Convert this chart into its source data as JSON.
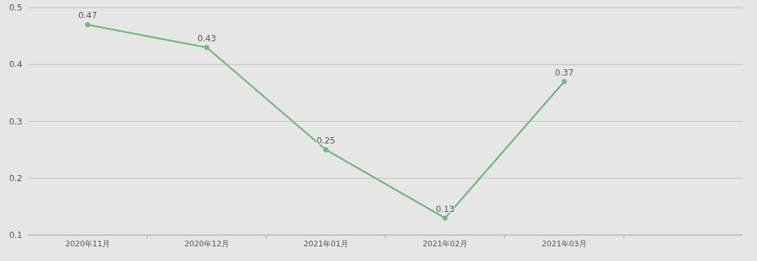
{
  "chart_data": {
    "type": "line",
    "categories": [
      "2020年11月",
      "2020年12月",
      "2021年01月",
      "2021年02月",
      "2021年03月"
    ],
    "series": [
      {
        "color": "#6dbb78",
        "values": [
          0.47,
          0.43,
          0.25,
          0.13,
          0.37
        ]
      }
    ],
    "ylim": [
      0.1,
      0.5
    ],
    "yticks": [
      0.1,
      0.2,
      0.3,
      0.4,
      0.5
    ],
    "grid": "y",
    "marker": "circle",
    "data_labels": true
  }
}
